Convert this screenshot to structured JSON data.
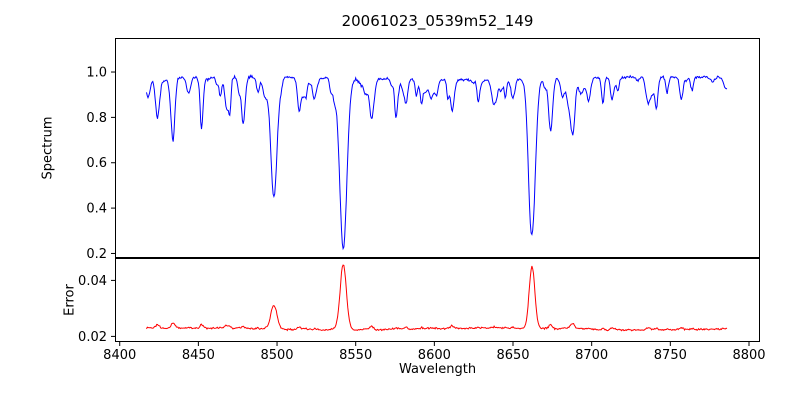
{
  "figure": {
    "background": "#ffffff",
    "spine_color": "#000000",
    "text_color": "#000000"
  },
  "chart_data": {
    "type": "line",
    "title": "20061023_0539m52_149",
    "xlabel": "Wavelength",
    "x_range": [
      8417,
      8786
    ],
    "xlim": [
      8397,
      8807
    ],
    "x_ticks": [
      8400,
      8450,
      8500,
      8550,
      8600,
      8650,
      8700,
      8750,
      8800
    ],
    "x_tick_labels": [
      "8400",
      "8450",
      "8500",
      "8550",
      "8600",
      "8650",
      "8700",
      "8750",
      "8800"
    ],
    "sampling_step": 0.5,
    "noise_seed": 42,
    "legend": "none",
    "grid": false,
    "panels": [
      {
        "name": "spectrum",
        "ylabel": "Spectrum",
        "color": "#0000ff",
        "ylim": [
          0.18,
          1.15
        ],
        "y_ticks": [
          0.2,
          0.4,
          0.6,
          0.8,
          1.0
        ],
        "y_tick_labels": [
          "0.2",
          "0.4",
          "0.6",
          "0.8",
          "1.0"
        ],
        "continuum": 0.972,
        "noise_amplitude": 0.009,
        "absorption_lines_strong": [
          {
            "center": 8498.0,
            "depth": 0.53,
            "width": 2.0,
            "min_flux": 0.44
          },
          {
            "center": 8542.1,
            "depth": 0.75,
            "width": 2.3,
            "min_flux": 0.23
          },
          {
            "center": 8662.1,
            "depth": 0.66,
            "width": 2.1,
            "min_flux": 0.32
          }
        ],
        "absorption_lines_medium": [
          {
            "center": 8424.0,
            "depth": 0.16,
            "width": 1.2
          },
          {
            "center": 8434.0,
            "depth": 0.19,
            "width": 1.3
          },
          {
            "center": 8452.0,
            "depth": 0.1,
            "width": 1.1
          },
          {
            "center": 8468.0,
            "depth": 0.14,
            "width": 1.2
          },
          {
            "center": 8514.0,
            "depth": 0.13,
            "width": 1.1
          },
          {
            "center": 8560.0,
            "depth": 0.12,
            "width": 1.1
          },
          {
            "center": 8582.0,
            "depth": 0.1,
            "width": 1.0
          },
          {
            "center": 8611.0,
            "depth": 0.11,
            "width": 1.0
          },
          {
            "center": 8674.0,
            "depth": 0.13,
            "width": 1.1
          },
          {
            "center": 8688.0,
            "depth": 0.24,
            "width": 1.4
          },
          {
            "center": 8713.0,
            "depth": 0.1,
            "width": 1.0
          },
          {
            "center": 8736.0,
            "depth": 0.09,
            "width": 1.0
          },
          {
            "center": 8757.0,
            "depth": 0.1,
            "width": 1.0
          }
        ],
        "weak_lines": {
          "count": 90,
          "depth_min": 0.01,
          "depth_max": 0.1,
          "width_min": 0.6,
          "width_max": 1.4
        }
      },
      {
        "name": "error",
        "ylabel": "Error",
        "color": "#ff0000",
        "ylim": [
          0.018,
          0.048
        ],
        "y_ticks": [
          0.02,
          0.04
        ],
        "y_tick_labels": [
          "0.02",
          "0.04"
        ],
        "baseline": 0.0226,
        "noise_amplitude": 0.00045,
        "peaks": [
          {
            "center": 8498.0,
            "amplitude": 0.0085,
            "width": 2.0
          },
          {
            "center": 8542.1,
            "amplitude": 0.0235,
            "width": 2.0
          },
          {
            "center": 8662.1,
            "amplitude": 0.022,
            "width": 1.8
          }
        ]
      }
    ]
  }
}
